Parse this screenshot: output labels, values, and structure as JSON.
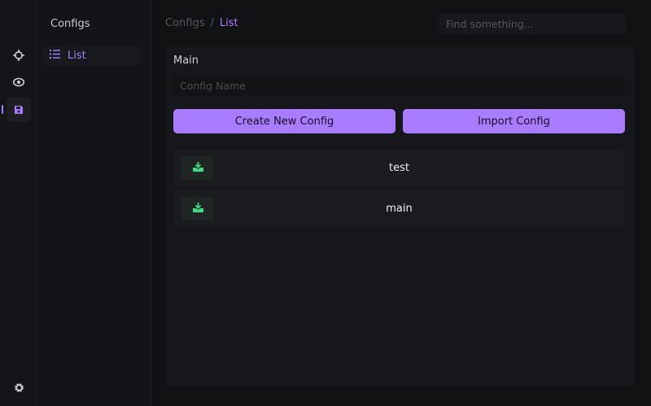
{
  "rail": {
    "icons": [
      "crosshair-icon",
      "eye-icon",
      "save-icon",
      "gear-icon"
    ],
    "active": "save-icon"
  },
  "sidebar": {
    "title": "Configs",
    "items": [
      {
        "label": "List",
        "icon": "list-icon",
        "active": true
      }
    ]
  },
  "breadcrumb": {
    "parent": "Configs",
    "separator": "/",
    "current": "List"
  },
  "search": {
    "placeholder": "Find something..."
  },
  "main": {
    "title": "Main",
    "config_name_placeholder": "Config Name",
    "create_label": "Create New Config",
    "import_label": "Import Config",
    "configs": [
      {
        "name": "test"
      },
      {
        "name": "main"
      }
    ]
  },
  "colors": {
    "accent": "#a97bff",
    "download": "#3ddc84",
    "background": "#111214"
  }
}
